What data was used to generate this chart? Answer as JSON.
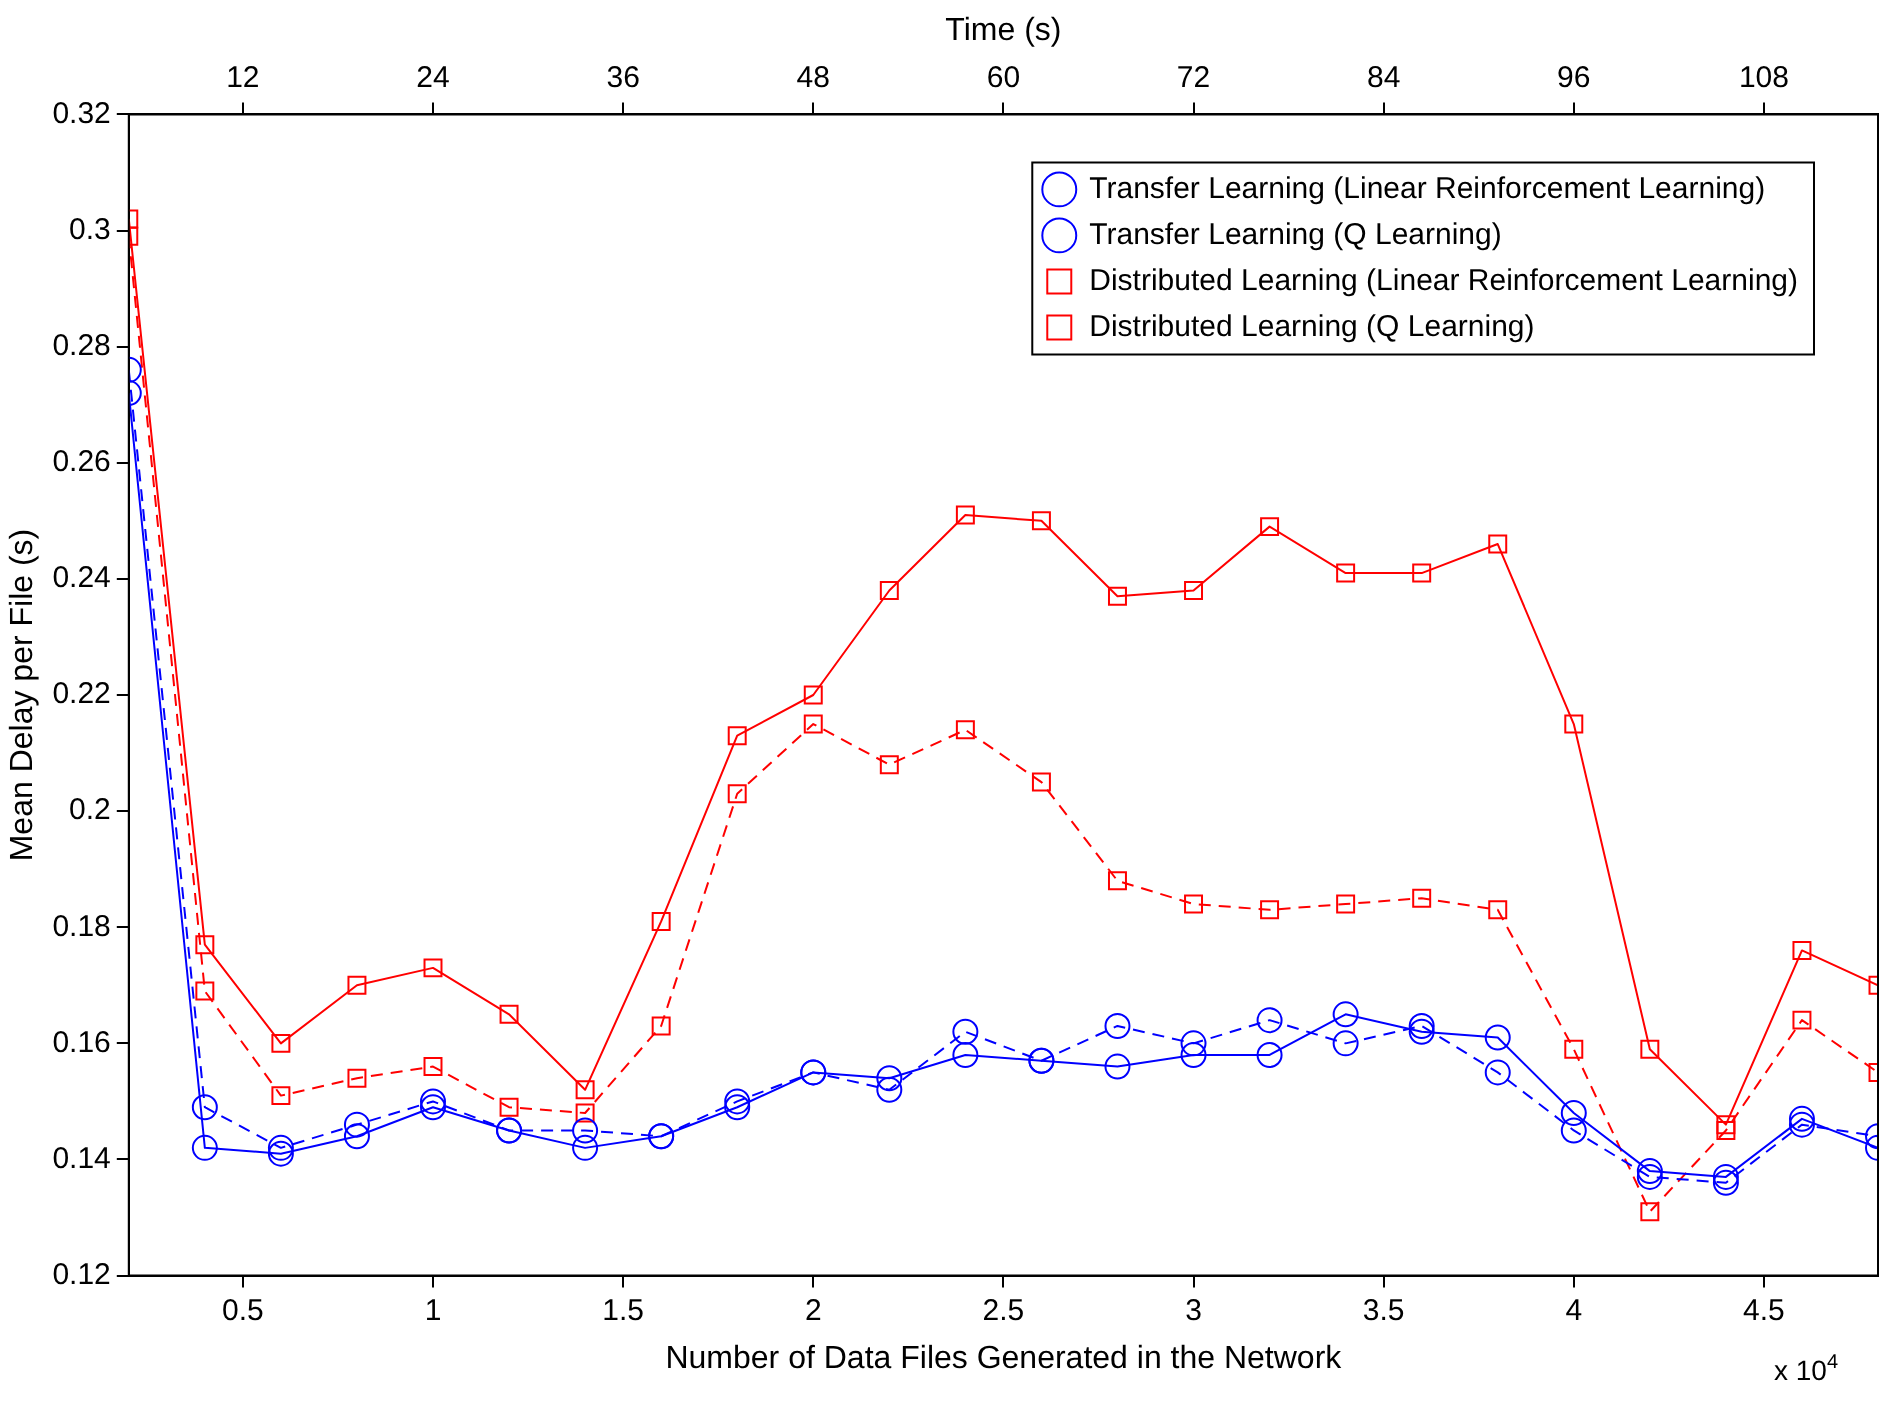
{
  "chart_data": {
    "type": "line",
    "xlabel": "Number of Data Files Generated in the Network",
    "ylabel": "Mean Delay per File (s)",
    "x2label": "Time (s)",
    "annotations": [
      "x 10$^{4}$"
    ],
    "x": [
      0.2,
      0.4,
      0.6,
      0.8,
      1.0,
      1.2,
      1.4,
      1.6,
      1.8,
      2.0,
      2.2,
      2.4,
      2.6,
      2.8,
      3.0,
      3.2,
      3.4,
      3.6,
      3.8,
      4.0,
      4.2,
      4.4,
      4.6,
      4.8
    ],
    "series": [
      {
        "name": "Transfer Learning (Linear Reinforcement Learning)",
        "color": "#0000ff",
        "marker": "circle",
        "line_style": "solid",
        "values": [
          0.272,
          0.142,
          0.141,
          0.144,
          0.149,
          0.145,
          0.142,
          0.144,
          0.149,
          0.155,
          0.154,
          0.158,
          0.157,
          0.156,
          0.158,
          0.158,
          0.165,
          0.162,
          0.161,
          0.148,
          0.138,
          0.137,
          0.147,
          0.142
        ]
      },
      {
        "name": "Transfer Learning (Q Learning)",
        "color": "#0000ff",
        "marker": "circle",
        "line_style": "dashed",
        "values": [
          0.276,
          0.149,
          0.142,
          0.146,
          0.15,
          0.145,
          0.145,
          0.144,
          0.15,
          0.155,
          0.152,
          0.162,
          0.157,
          0.163,
          0.16,
          0.164,
          0.16,
          0.163,
          0.155,
          0.145,
          0.137,
          0.136,
          0.146,
          0.144
        ]
      },
      {
        "name": "Distributed Learning (Linear Reinforcement Learning)",
        "color": "#ff0000",
        "marker": "square",
        "line_style": "solid",
        "values": [
          0.302,
          0.177,
          0.16,
          0.17,
          0.173,
          0.165,
          0.152,
          0.181,
          0.213,
          0.22,
          0.238,
          0.251,
          0.25,
          0.237,
          0.238,
          0.249,
          0.241,
          0.241,
          0.246,
          0.215,
          0.159,
          0.146,
          0.176,
          0.17
        ]
      },
      {
        "name": "Distributed Learning (Q Learning)",
        "color": "#ff0000",
        "marker": "square",
        "line_style": "dashed",
        "values": [
          0.299,
          0.169,
          0.151,
          0.154,
          0.156,
          0.149,
          0.148,
          0.163,
          0.203,
          0.215,
          0.208,
          0.214,
          0.205,
          0.188,
          0.184,
          0.183,
          0.184,
          0.185,
          0.183,
          0.159,
          0.131,
          0.145,
          0.164,
          0.155
        ]
      }
    ],
    "xlim": [
      0.2,
      4.8
    ],
    "xticks": [
      0.5,
      1,
      1.5,
      2,
      2.5,
      3,
      3.5,
      4,
      4.5
    ],
    "x2lim": [
      4.8,
      115.2
    ],
    "x2ticks": [
      12,
      24,
      36,
      48,
      60,
      72,
      84,
      96,
      108
    ],
    "ylim": [
      0.12,
      0.32
    ],
    "yticks": [
      0.12,
      0.14,
      0.16,
      0.18,
      0.2,
      0.22,
      0.24,
      0.26,
      0.28,
      0.3,
      0.32
    ],
    "grid": false,
    "legend": "top right"
  }
}
